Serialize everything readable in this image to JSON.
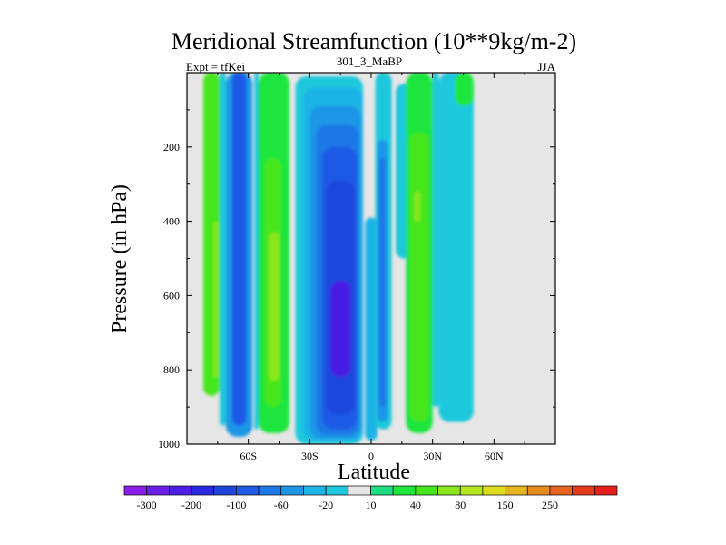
{
  "chart_data": {
    "type": "heatmap",
    "title": "Meridional Streamfunction (10**9kg/m-2)",
    "left_subtitle": "Expt = tfKei",
    "center_subtitle": "301_3_MaBP",
    "right_subtitle": "JJA",
    "xlabel": "Latitude",
    "ylabel": "Pressure (in hPa)",
    "xlim": [
      -90,
      90
    ],
    "ylim": [
      1000,
      0
    ],
    "x_ticks": [
      {
        "value": -60,
        "label": "60S"
      },
      {
        "value": -30,
        "label": "30S"
      },
      {
        "value": 0,
        "label": "0"
      },
      {
        "value": 30,
        "label": "30N"
      },
      {
        "value": 60,
        "label": "60N"
      }
    ],
    "y_ticks": [
      {
        "value": 200,
        "label": "200"
      },
      {
        "value": 400,
        "label": "400"
      },
      {
        "value": 600,
        "label": "600"
      },
      {
        "value": 800,
        "label": "800"
      },
      {
        "value": 1000,
        "label": "1000"
      }
    ],
    "background_color": "#e6e6e6",
    "colorbar": {
      "labels": [
        "-300",
        "-200",
        "-100",
        "-60",
        "-20",
        "10",
        "40",
        "80",
        "150",
        "250"
      ],
      "colors": [
        "#8a1ee6",
        "#6a1ee6",
        "#4a1ee6",
        "#2a28e0",
        "#1e46dc",
        "#1e5ae6",
        "#1e78e6",
        "#1e96e6",
        "#1eb4e6",
        "#1ec8dc",
        "#e6e6e6",
        "#1edc82",
        "#1ee63c",
        "#46e61e",
        "#8ce61e",
        "#b4e61e",
        "#dcdc1e",
        "#e6b41e",
        "#e68c1e",
        "#e6641e",
        "#e63c1e",
        "#e61e1e"
      ]
    },
    "cells": [
      {
        "lat": [
          -82,
          -74
        ],
        "p": [
          0,
          870
        ],
        "color": "#46e61e"
      },
      {
        "lat": [
          -77,
          -75
        ],
        "p": [
          400,
          820
        ],
        "color": "#8ce61e"
      },
      {
        "lat": [
          -74,
          -71
        ],
        "p": [
          0,
          950
        ],
        "color": "#1ec8dc"
      },
      {
        "lat": [
          -71,
          -58
        ],
        "p": [
          0,
          980
        ],
        "color": "#1e96e6"
      },
      {
        "lat": [
          -68,
          -61
        ],
        "p": [
          0,
          950
        ],
        "color": "#1e5ae6"
      },
      {
        "lat": [
          -57,
          -55
        ],
        "p": [
          0,
          960
        ],
        "color": "#1ec8dc"
      },
      {
        "lat": [
          -55,
          -40
        ],
        "p": [
          0,
          970
        ],
        "color": "#1ee63c"
      },
      {
        "lat": [
          -52,
          -44
        ],
        "p": [
          230,
          900
        ],
        "color": "#46e61e"
      },
      {
        "lat": [
          -50,
          -45
        ],
        "p": [
          430,
          830
        ],
        "color": "#8ce61e"
      },
      {
        "lat": [
          -37,
          -4
        ],
        "p": [
          10,
          1000
        ],
        "color": "#1ec8dc"
      },
      {
        "lat": [
          -33,
          -4
        ],
        "p": [
          40,
          990
        ],
        "color": "#1eb4e6"
      },
      {
        "lat": [
          -30,
          -5
        ],
        "p": [
          90,
          985
        ],
        "color": "#1e96e6"
      },
      {
        "lat": [
          -27,
          -6
        ],
        "p": [
          140,
          975
        ],
        "color": "#1e78e6"
      },
      {
        "lat": [
          -24,
          -7
        ],
        "p": [
          200,
          960
        ],
        "color": "#1e5ae6"
      },
      {
        "lat": [
          -22,
          -8
        ],
        "p": [
          290,
          920
        ],
        "color": "#1e46dc"
      },
      {
        "lat": [
          -20,
          -10
        ],
        "p": [
          560,
          820
        ],
        "color": "#4a1ee6"
      },
      {
        "lat": [
          -3,
          3
        ],
        "p": [
          390,
          990
        ],
        "color": "#1eb4e6"
      },
      {
        "lat": [
          2,
          10
        ],
        "p": [
          0,
          960
        ],
        "color": "#1ec8dc"
      },
      {
        "lat": [
          3,
          8
        ],
        "p": [
          180,
          940
        ],
        "color": "#1e96e6"
      },
      {
        "lat": [
          4,
          7
        ],
        "p": [
          230,
          900
        ],
        "color": "#1e78e6"
      },
      {
        "lat": [
          12,
          20
        ],
        "p": [
          30,
          500
        ],
        "color": "#1ec8dc"
      },
      {
        "lat": [
          17,
          30
        ],
        "p": [
          0,
          970
        ],
        "color": "#1ee63c"
      },
      {
        "lat": [
          19,
          28
        ],
        "p": [
          160,
          940
        ],
        "color": "#46e61e"
      },
      {
        "lat": [
          21,
          24
        ],
        "p": [
          320,
          400
        ],
        "color": "#8ce61e"
      },
      {
        "lat": [
          30,
          33
        ],
        "p": [
          0,
          900
        ],
        "color": "#1ec8dc"
      },
      {
        "lat": [
          33,
          50
        ],
        "p": [
          0,
          940
        ],
        "color": "#1ec8dc"
      },
      {
        "lat": [
          41,
          50
        ],
        "p": [
          0,
          90
        ],
        "color": "#1ee63c"
      }
    ]
  }
}
